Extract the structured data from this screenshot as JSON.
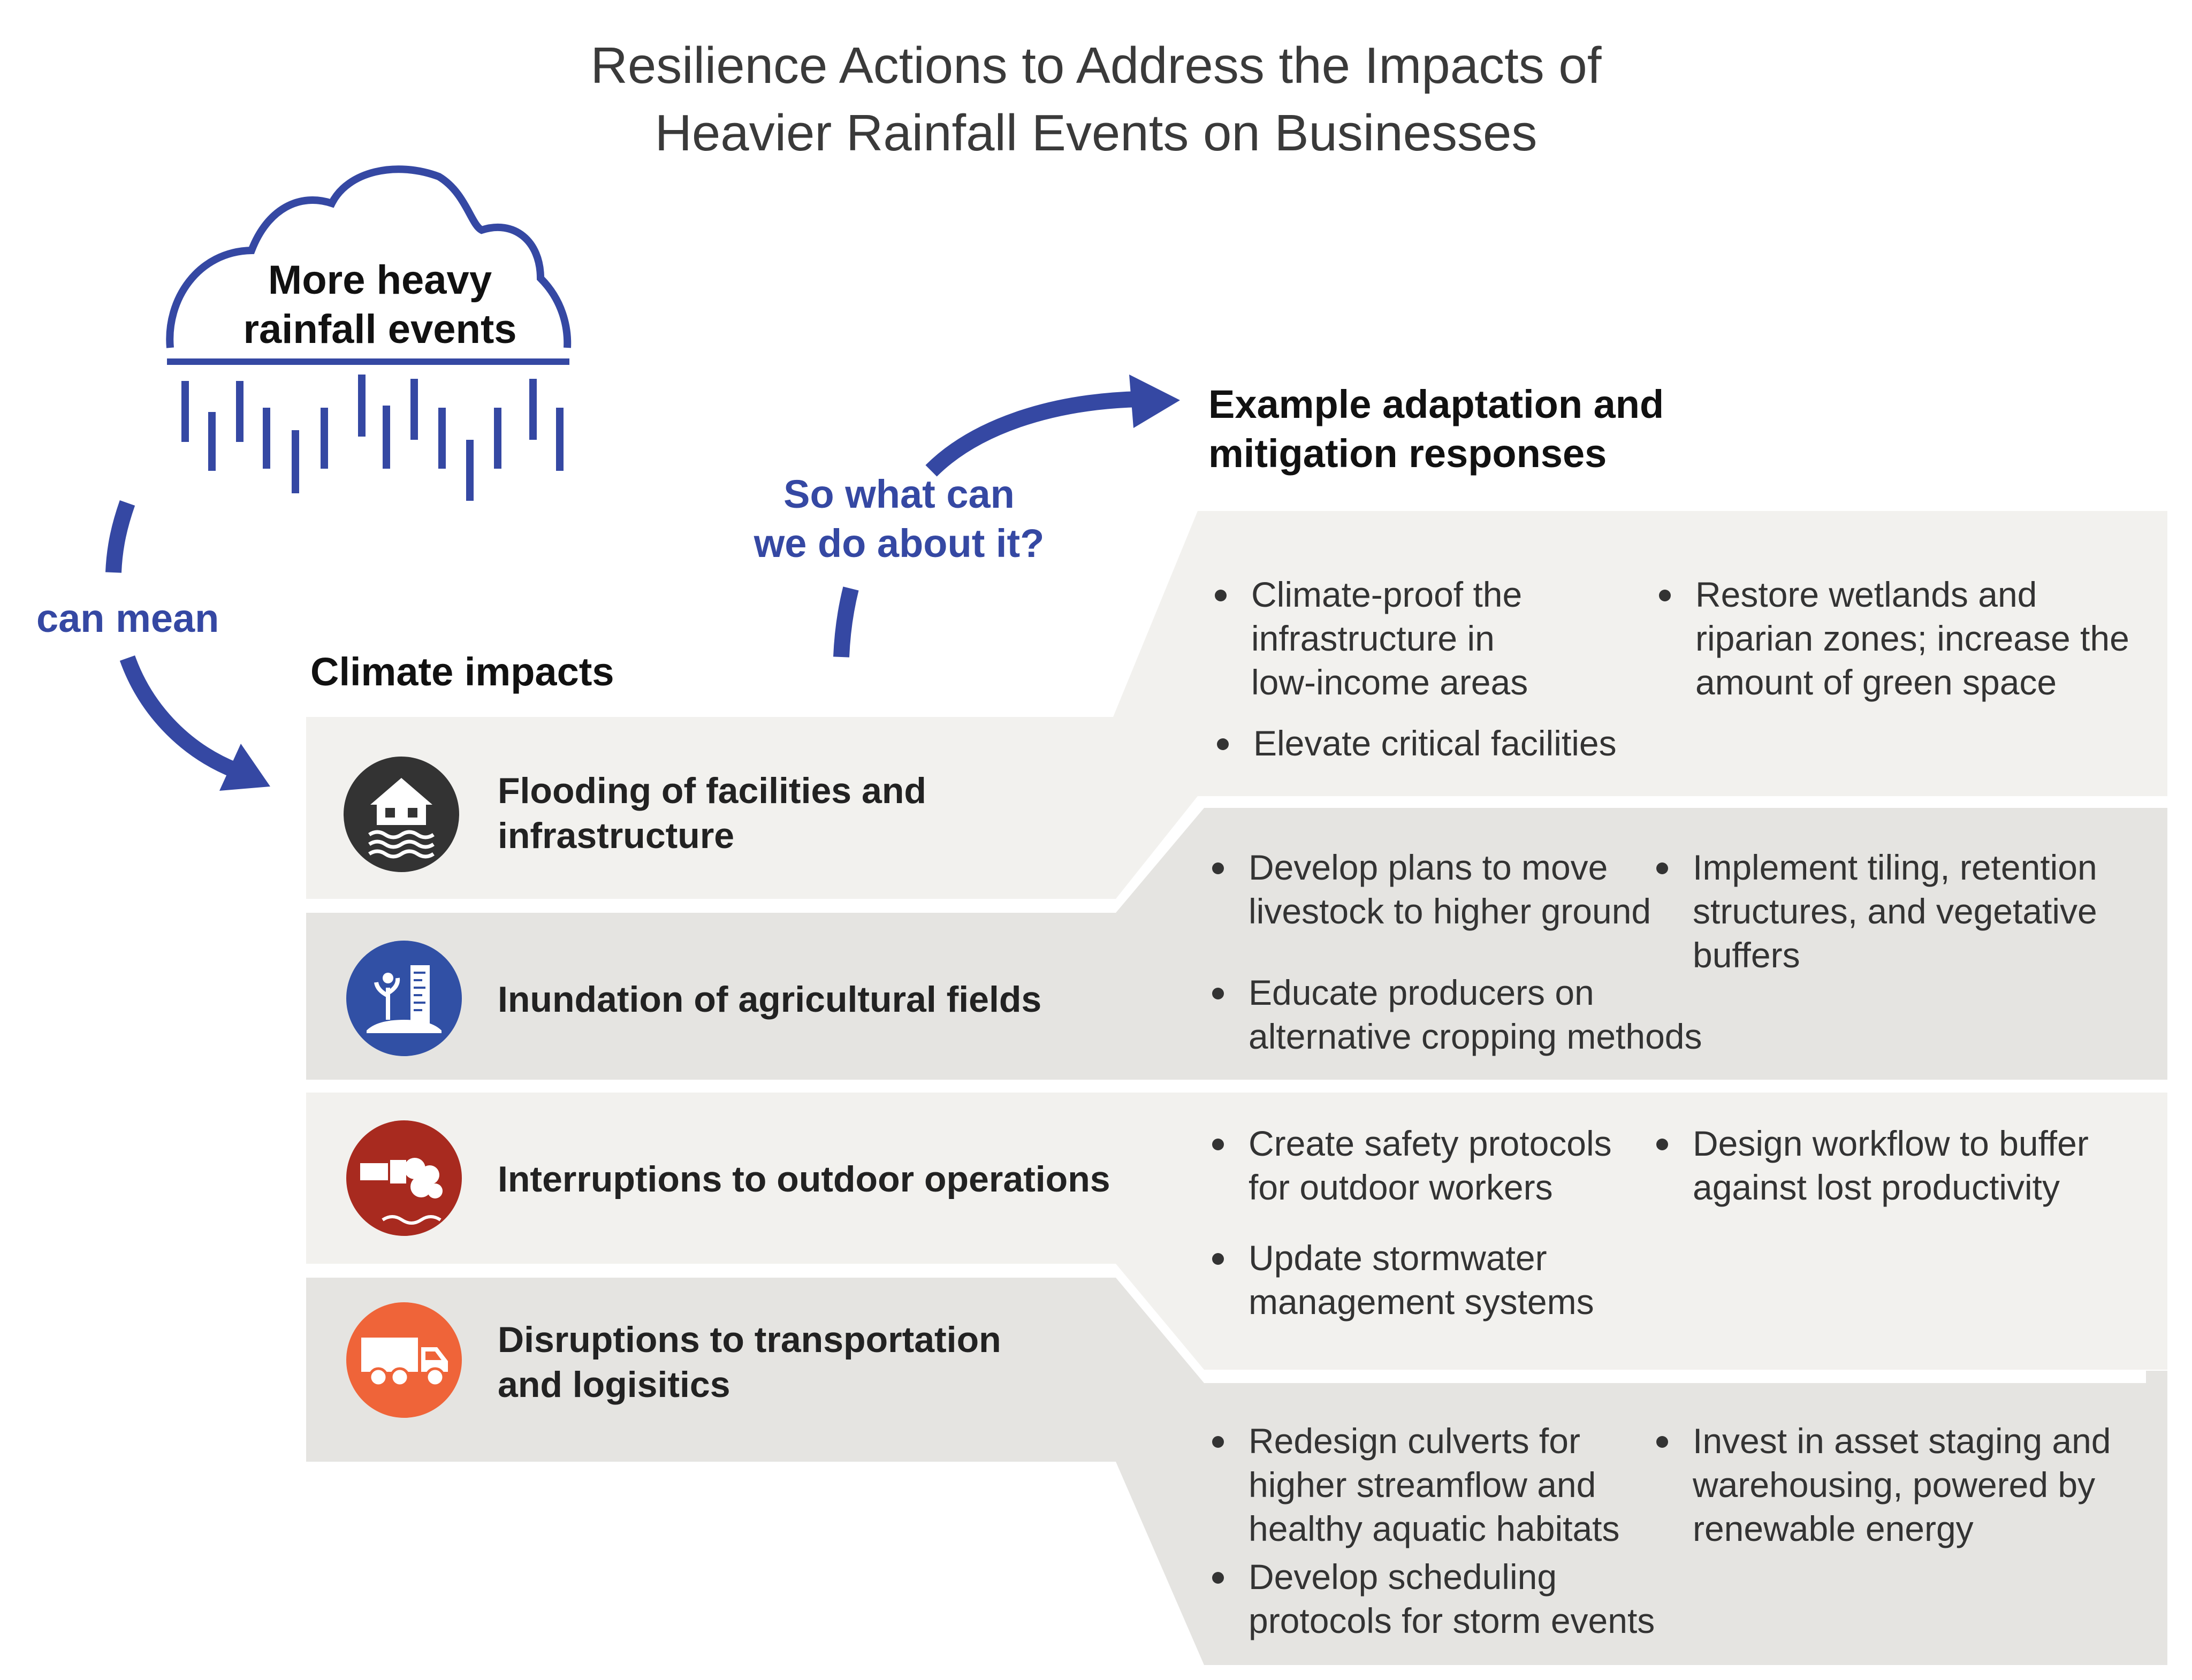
{
  "title": "Resilience Actions to Address the Impacts of\nHeavier Rainfall Events on Businesses",
  "cloud": {
    "label": "More heavy\nrainfall events"
  },
  "can_mean": "can mean",
  "so_what": "So what can\nwe do about it?",
  "climate_impacts": {
    "heading": "Climate impacts",
    "items": [
      {
        "label": "Flooding of facilities and\ninfrastructure",
        "icon": "flooded-house-icon",
        "color": "#333333"
      },
      {
        "label": "Inundation of agricultural fields",
        "icon": "flooded-field-gauge-icon",
        "color": "#3150a5"
      },
      {
        "label": "Interruptions to outdoor operations",
        "icon": "storm-pipe-icon",
        "color": "#a82a1f"
      },
      {
        "label": "Disruptions to transportation\nand logisitics",
        "icon": "truck-icon",
        "color": "#ef6439"
      }
    ]
  },
  "responses": {
    "heading": "Example adaptation and\nmitigation responses",
    "groups": [
      {
        "items": [
          "Climate-proof the\ninfrastructure in\nlow-income areas",
          "Restore wetlands and\nriparian zones; increase the\namount of green space",
          "Elevate critical facilities"
        ]
      },
      {
        "items": [
          "Develop plans to move\nlivestock to higher ground",
          "Implement tiling, retention\nstructures, and vegetative\nbuffers",
          "Educate producers on\nalternative cropping methods"
        ]
      },
      {
        "items": [
          "Create safety protocols\nfor outdoor workers",
          "Design workflow to buffer\nagainst lost productivity",
          "Update stormwater\nmanagement systems"
        ]
      },
      {
        "items": [
          "Redesign culverts for\nhigher streamflow and\nhealthy aquatic habitats",
          "Invest in asset staging and\nwarehousing, powered by\nrenewable energy",
          "Develop scheduling\nprotocols for storm events"
        ]
      }
    ]
  },
  "colors": {
    "accent_blue": "#3548a3",
    "panel_light": "#f2f1ee",
    "panel_dark": "#e5e4e1"
  }
}
